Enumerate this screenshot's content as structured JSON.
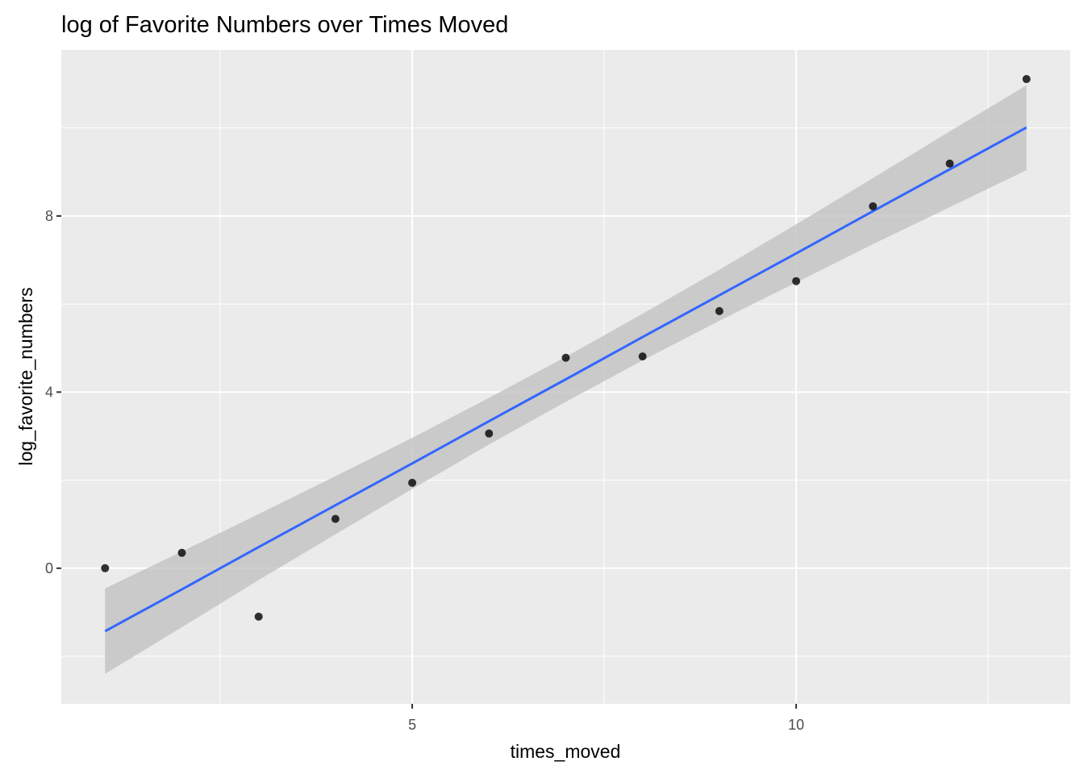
{
  "chart_data": {
    "type": "scatter",
    "title": "log of Favorite Numbers over Times Moved",
    "x_label": "times_moved",
    "y_label": "log_favorite_numbers",
    "x": [
      1,
      2,
      3,
      4,
      5,
      6,
      7,
      8,
      9,
      10,
      11,
      12,
      13
    ],
    "values": [
      0,
      0.35,
      -1.1,
      1.12,
      1.94,
      3.06,
      4.78,
      4.81,
      5.84,
      6.52,
      8.22,
      9.19,
      11.11
    ],
    "color": "#000000",
    "fit": {
      "color": "#3366ff",
      "band_color": "#bfbfbf",
      "values": [
        -1.43,
        -0.48,
        0.48,
        1.43,
        2.38,
        3.34,
        4.29,
        5.25,
        6.2,
        7.15,
        8.11,
        9.06,
        10.01
      ],
      "lower": [
        -2.4,
        -1.34,
        -0.27,
        0.77,
        1.8,
        2.81,
        3.78,
        4.72,
        5.62,
        6.49,
        7.36,
        8.2,
        9.04
      ],
      "upper": [
        -0.46,
        0.38,
        1.23,
        2.09,
        2.96,
        3.87,
        4.8,
        5.78,
        6.78,
        7.81,
        8.86,
        9.92,
        10.97
      ]
    },
    "xlim": [
      0.43,
      13.57
    ],
    "ylim": [
      -3.08,
      11.77
    ],
    "xticks": [
      5,
      10
    ],
    "yticks": [
      0,
      4,
      8
    ],
    "xminor": [
      2.5,
      7.5,
      12.5
    ],
    "yminor": [
      -2,
      2,
      6,
      10
    ],
    "grid": true
  }
}
